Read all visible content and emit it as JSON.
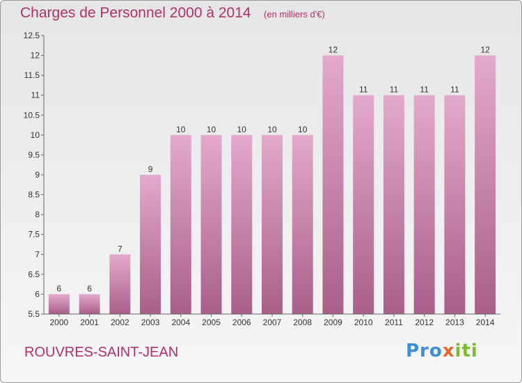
{
  "header": {
    "title": "Charges de Personnel 2000 à 2014",
    "unit": "(en milliers d'€)"
  },
  "footer": {
    "commune": "ROUVRES-SAINT-JEAN",
    "logo_text": "Proxiti"
  },
  "colors": {
    "accent": "#b0306a",
    "bar_top": "#e4a9cc",
    "bar_bottom": "#a85f8a"
  },
  "chart_data": {
    "type": "bar",
    "title": "Charges de Personnel 2000 à 2014",
    "subtitle": "(en milliers d'€)",
    "categories": [
      "2000",
      "2001",
      "2002",
      "2003",
      "2004",
      "2005",
      "2006",
      "2007",
      "2008",
      "2009",
      "2010",
      "2011",
      "2012",
      "2013",
      "2014"
    ],
    "values": [
      6,
      6,
      7,
      9,
      10,
      10,
      10,
      10,
      10,
      12,
      11,
      11,
      11,
      11,
      12
    ],
    "value_labels": [
      "6",
      "6",
      "7",
      "9",
      "10",
      "10",
      "10",
      "10",
      "10",
      "12",
      "11",
      "11",
      "11",
      "11",
      "12"
    ],
    "ylim": [
      5.5,
      12.5
    ],
    "yticks": [
      5.5,
      6,
      6.5,
      7,
      7.5,
      8,
      8.5,
      9,
      9.5,
      10,
      10.5,
      11,
      11.5,
      12,
      12.5
    ],
    "ytick_labels": [
      "5.5",
      "6",
      "6.5",
      "7",
      "7.5",
      "8",
      "8.5",
      "9",
      "9.5",
      "10",
      "10.5",
      "11",
      "11.5",
      "12",
      "12.5"
    ],
    "grid": false
  }
}
